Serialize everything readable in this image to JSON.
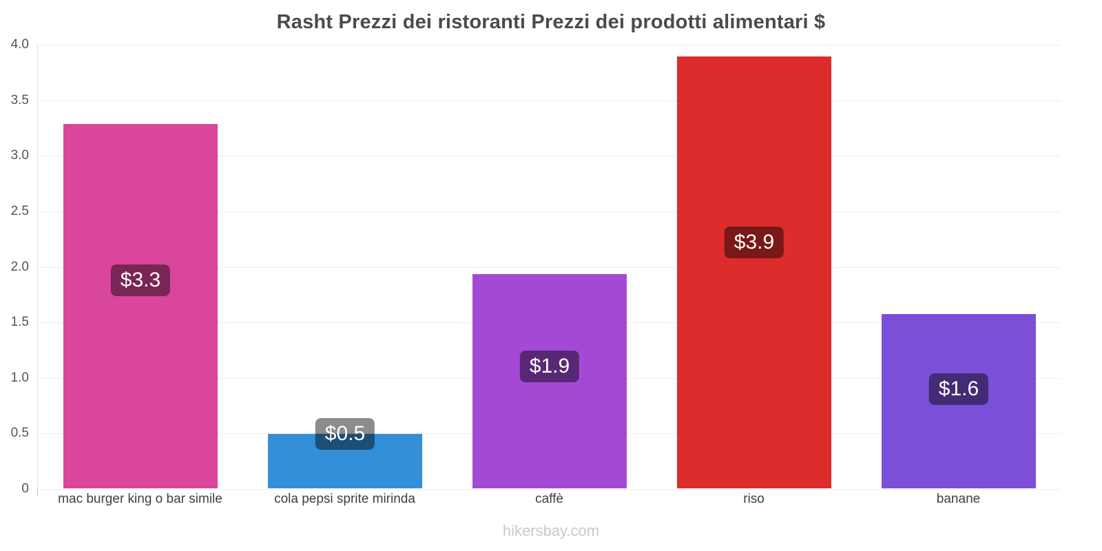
{
  "title": "Rasht Prezzi dei ristoranti Prezzi dei prodotti alimentari $",
  "footer": "hikersbay.com",
  "chart_data": {
    "type": "bar",
    "title": "Rasht Prezzi dei ristoranti Prezzi dei prodotti alimentari $",
    "categories": [
      "mac burger king o bar simile",
      "cola pepsi sprite mirinda",
      "caffè",
      "riso",
      "banane"
    ],
    "values": [
      3.28,
      0.49,
      1.93,
      3.89,
      1.57
    ],
    "value_labels": [
      "$3.3",
      "$0.5",
      "$1.9",
      "$3.9",
      "$1.6"
    ],
    "bar_colors": [
      "#d9469c",
      "#338fd8",
      "#a349d6",
      "#dd2c2c",
      "#7b4fd8"
    ],
    "badge_color": "rgba(0,0,0,0.45)",
    "xlabel": "",
    "ylabel": "",
    "ylim": [
      0,
      4.0
    ],
    "yticks": [
      "0",
      "0.5",
      "1.0",
      "1.5",
      "2.0",
      "2.5",
      "3.0",
      "3.5",
      "4.0"
    ],
    "grid": true,
    "legend": false,
    "currency": "$",
    "source": "hikersbay.com"
  }
}
